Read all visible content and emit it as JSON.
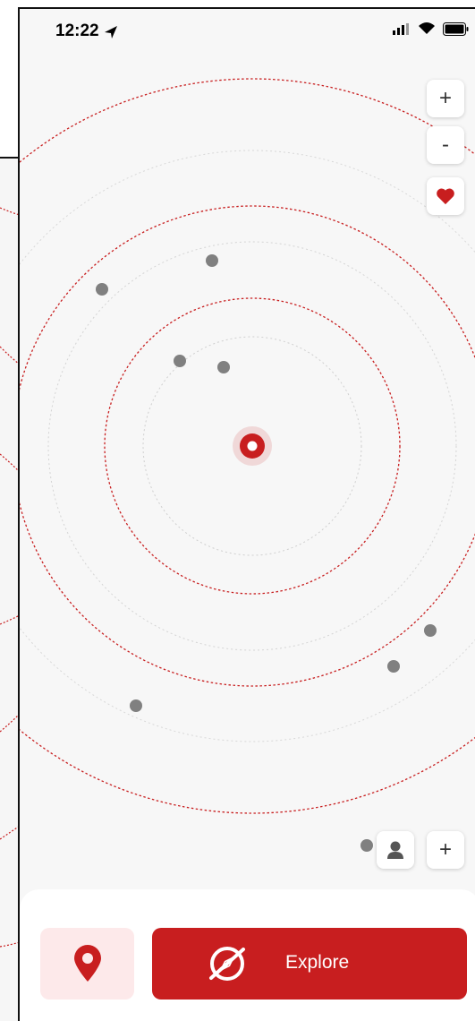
{
  "status_bar": {
    "time": "12:22",
    "location_arrow_icon": "location-arrow-icon",
    "signal_icon": "cellular-signal-icon",
    "wifi_icon": "wifi-icon",
    "battery_icon": "battery-icon"
  },
  "map": {
    "zoom_in_label": "+",
    "zoom_out_label": "-",
    "favorites_icon": "heart-icon",
    "user_location_icon": "user-location-marker-icon",
    "nearby_icon": "nearby-point-icon",
    "accent_color": "#c81e1f"
  },
  "map_controls": {
    "profile_icon": "person-icon",
    "add_label": "+"
  },
  "bottom_bar": {
    "pin_icon": "map-pin-icon",
    "explore_icon": "compass-icon",
    "explore_label": "Explore"
  },
  "colors": {
    "primary": "#c81e1f",
    "primary_light": "#fde9ea",
    "map_background": "#f7f7f7",
    "dot": "#808080"
  }
}
